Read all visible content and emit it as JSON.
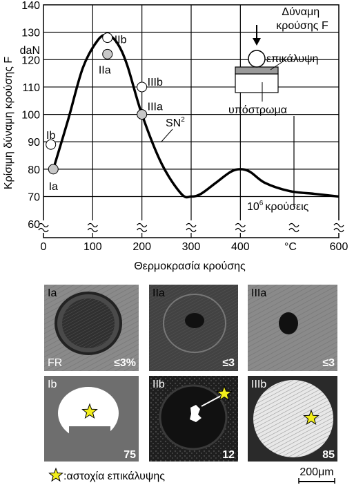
{
  "chart_data": {
    "type": "line",
    "xlabel": "Θερμοκρασία κρούσης",
    "ylabel": "Κρίσιμη δύναμη κρούσης F",
    "y_unit": "daN",
    "x_unit": "°C",
    "x_ticks": [
      "0",
      "100",
      "200",
      "300",
      "400",
      "600"
    ],
    "y_ticks": [
      "60",
      "70",
      "80",
      "90",
      "100",
      "110",
      "120",
      "130",
      "140"
    ],
    "xlim": [
      0,
      600
    ],
    "ylim": [
      55,
      140
    ],
    "grid": true,
    "series": [
      {
        "name": "SN²",
        "x": [
          20,
          50,
          80,
          110,
          130,
          150,
          170,
          200,
          240,
          280,
          300,
          320,
          350,
          380,
          400,
          420,
          450,
          500,
          550,
          600
        ],
        "y": [
          80,
          98,
          117,
          127,
          129,
          126,
          118,
          100,
          82,
          71,
          70,
          71,
          75,
          79,
          80,
          79,
          75,
          72,
          71,
          70
        ]
      }
    ],
    "points": [
      {
        "label": "Ia",
        "x": 20,
        "y": 80,
        "fill": "#c8c8c8"
      },
      {
        "label": "Ib",
        "x": 15,
        "y": 89,
        "fill": "#ffffff"
      },
      {
        "label": "IIa",
        "x": 130,
        "y": 122,
        "fill": "#c8c8c8"
      },
      {
        "label": "IIb",
        "x": 130,
        "y": 128,
        "fill": "#ffffff"
      },
      {
        "label": "IIIa",
        "x": 200,
        "y": 100,
        "fill": "#c8c8c8"
      },
      {
        "label": "IIIb",
        "x": 200,
        "y": 110,
        "fill": "#ffffff"
      }
    ],
    "annotations": {
      "curve_label": "SN",
      "curve_label_sup": "2",
      "impacts_base": "10",
      "impacts_exp": "6",
      "impacts_text": "κρούσεις",
      "inset_force": "Δύναμη κρούσης F",
      "inset_coating": "επικάλυψη",
      "inset_substrate": "υπόστρωμα"
    }
  },
  "micrographs": [
    {
      "label": "Ia",
      "value": "≤3%",
      "corner": "FR"
    },
    {
      "label": "IIa",
      "value": "≤3"
    },
    {
      "label": "IIIa",
      "value": "≤3"
    },
    {
      "label": "Ib",
      "value": "75"
    },
    {
      "label": "IIb",
      "value": "12"
    },
    {
      "label": "IIIb",
      "value": "85"
    }
  ],
  "legend_text": ":αστοχία επικάλυψης",
  "scale_bar": "200μm",
  "colors": {
    "star": "#f2ee1c",
    "marker_grey": "#c8c8c8",
    "photo_bg": "#8a8a8a"
  }
}
